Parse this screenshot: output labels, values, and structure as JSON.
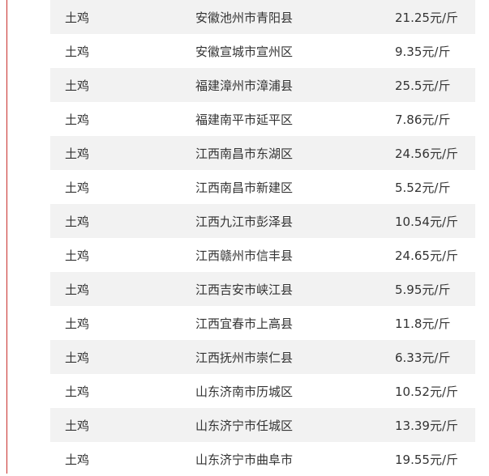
{
  "accent_color": "#c9302c",
  "rows": [
    {
      "name": "土鸡",
      "location": "安徽池州市青阳县",
      "price": "21.25元/斤"
    },
    {
      "name": "土鸡",
      "location": "安徽宣城市宣州区",
      "price": "9.35元/斤"
    },
    {
      "name": "土鸡",
      "location": "福建漳州市漳浦县",
      "price": "25.5元/斤"
    },
    {
      "name": "土鸡",
      "location": "福建南平市延平区",
      "price": "7.86元/斤"
    },
    {
      "name": "土鸡",
      "location": "江西南昌市东湖区",
      "price": "24.56元/斤"
    },
    {
      "name": "土鸡",
      "location": "江西南昌市新建区",
      "price": "5.52元/斤"
    },
    {
      "name": "土鸡",
      "location": "江西九江市彭泽县",
      "price": "10.54元/斤"
    },
    {
      "name": "土鸡",
      "location": "江西赣州市信丰县",
      "price": "24.65元/斤"
    },
    {
      "name": "土鸡",
      "location": "江西吉安市峡江县",
      "price": "5.95元/斤"
    },
    {
      "name": "土鸡",
      "location": "江西宜春市上高县",
      "price": "11.8元/斤"
    },
    {
      "name": "土鸡",
      "location": "江西抚州市崇仁县",
      "price": "6.33元/斤"
    },
    {
      "name": "土鸡",
      "location": "山东济南市历城区",
      "price": "10.52元/斤"
    },
    {
      "name": "土鸡",
      "location": "山东济宁市任城区",
      "price": "13.39元/斤"
    },
    {
      "name": "土鸡",
      "location": "山东济宁市曲阜市",
      "price": "19.55元/斤"
    }
  ]
}
